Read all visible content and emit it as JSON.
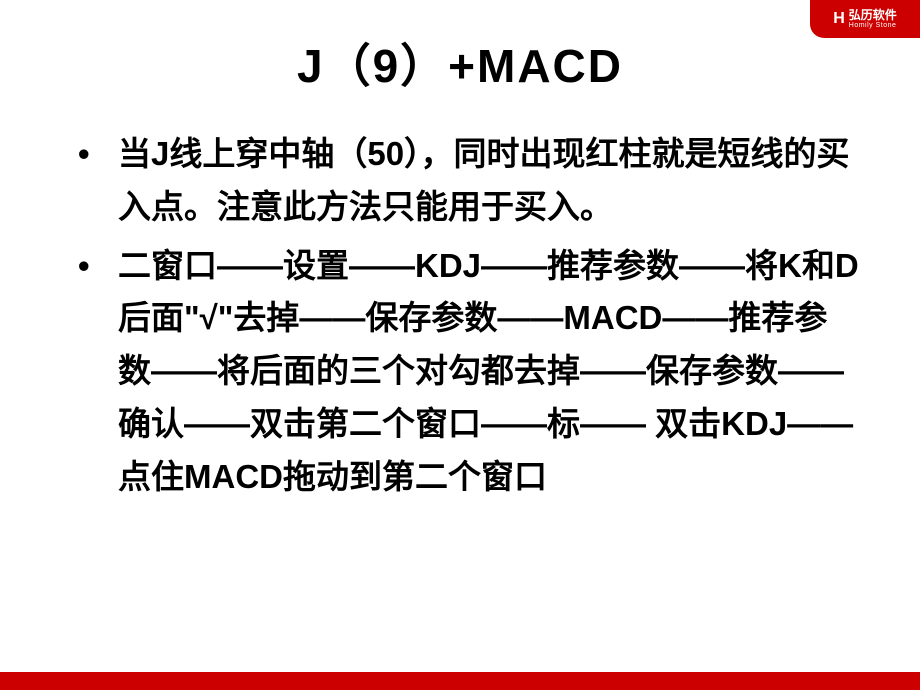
{
  "slide": {
    "title": "J（9）+MACD",
    "bullets": [
      "  当J线上穿中轴（50），同时出现红柱就是短线的买入点。注意此方法只能用于买入。",
      "二窗口——设置——KDJ——推荐参数——将K和D后面\"√\"去掉——保存参数——MACD——推荐参数——将后面的三个对勾都去掉——保存参数——确认——双击第二个窗口——标—— 双击KDJ——点住MACD拖动到第二个窗口"
    ],
    "logo": {
      "icon": "H",
      "cn": "弘历软件",
      "en": "Homily  Stone"
    },
    "colors": {
      "accent": "#cc0000",
      "text": "#000000",
      "background": "#ffffff"
    }
  }
}
